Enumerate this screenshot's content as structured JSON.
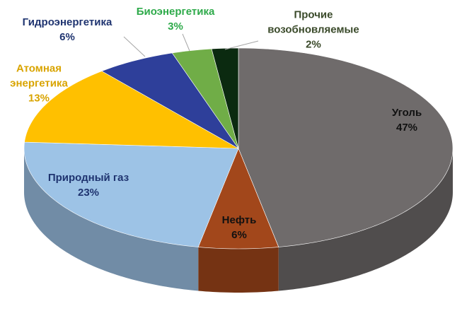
{
  "chart_data": {
    "type": "pie3d",
    "categories": [
      "Уголь",
      "Нефть",
      "Природный газ",
      "Атомная энергетика",
      "Гидроэнергетика",
      "Биоэнергетика",
      "Прочие возобновляемые"
    ],
    "values": [
      47,
      6,
      23,
      13,
      6,
      3,
      2
    ],
    "value_labels": [
      "47%",
      "6%",
      "23%",
      "13%",
      "6%",
      "3%",
      "2%"
    ],
    "colors": [
      "#6f6b6b",
      "#a2471b",
      "#9dc3e6",
      "#ffc000",
      "#2e3f9a",
      "#70ad47",
      "#0b2a10"
    ],
    "label_colors": [
      "#111111",
      "#111111",
      "#1f3470",
      "#d9a400",
      "#1f3470",
      "#2eaa4a",
      "#3a4a2a"
    ]
  }
}
